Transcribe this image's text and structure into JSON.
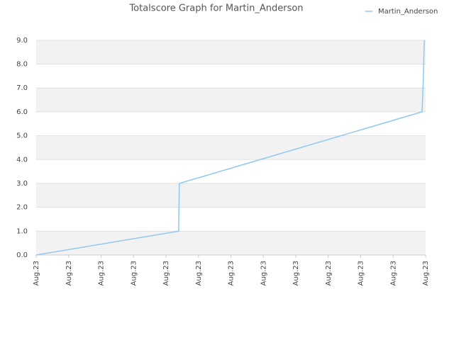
{
  "chart_data": {
    "type": "line",
    "title": "Totalscore Graph for Martin_Anderson",
    "x": [
      0,
      4.39,
      4.41,
      11.89,
      11.92,
      11.94,
      11.96
    ],
    "series": [
      {
        "name": "Martin_Anderson",
        "color": "#90c8f0",
        "values": [
          0,
          1,
          3,
          6,
          7,
          8,
          9
        ]
      }
    ],
    "xlim": [
      0,
      12
    ],
    "xticks": [
      {
        "value": 0,
        "label": "Aug.23"
      },
      {
        "value": 1,
        "label": "Aug.23"
      },
      {
        "value": 2,
        "label": "Aug.23"
      },
      {
        "value": 3,
        "label": "Aug.23"
      },
      {
        "value": 4,
        "label": "Aug.23"
      },
      {
        "value": 5,
        "label": "Aug.23"
      },
      {
        "value": 6,
        "label": "Aug.23"
      },
      {
        "value": 7,
        "label": "Aug.23"
      },
      {
        "value": 8,
        "label": "Aug.23"
      },
      {
        "value": 9,
        "label": "Aug.23"
      },
      {
        "value": 10,
        "label": "Aug.23"
      },
      {
        "value": 11,
        "label": "Aug.23"
      },
      {
        "value": 12,
        "label": "Aug.23"
      }
    ],
    "ylim": [
      0,
      9.5
    ],
    "yticks": [
      {
        "value": 0,
        "label": "0.0"
      },
      {
        "value": 1,
        "label": "1.0"
      },
      {
        "value": 2,
        "label": "2.0"
      },
      {
        "value": 3,
        "label": "3.0"
      },
      {
        "value": 4,
        "label": "4.0"
      },
      {
        "value": 5,
        "label": "5.0"
      },
      {
        "value": 6,
        "label": "6.0"
      },
      {
        "value": 7,
        "label": "7.0"
      },
      {
        "value": 8,
        "label": "8.0"
      },
      {
        "value": 9,
        "label": "9.0"
      }
    ],
    "grid": true,
    "legend": "top-right"
  }
}
